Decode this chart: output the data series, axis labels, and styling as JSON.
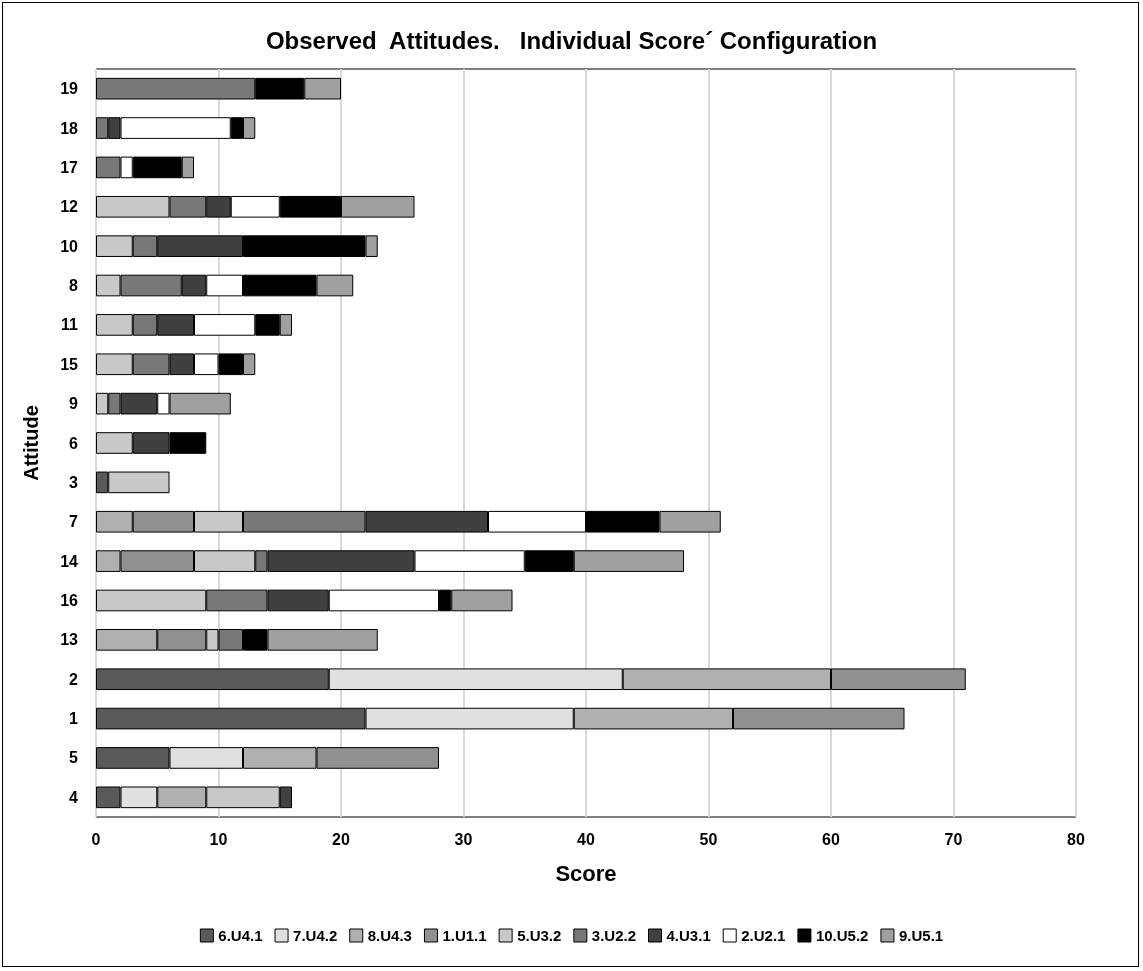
{
  "chart_data": {
    "type": "bar",
    "orientation": "horizontal",
    "stacked": true,
    "title": "Observed  Attitudes.   Individual Score´ Configuration",
    "xlabel": "Score",
    "ylabel": "Attitude",
    "categories": [
      "19",
      "18",
      "17",
      "12",
      "10",
      "8",
      "11",
      "15",
      "9",
      "6",
      "3",
      "7",
      "14",
      "16",
      "13",
      "2",
      "1",
      "5",
      "4"
    ],
    "xlim": [
      0,
      80
    ],
    "xticks": [
      0,
      10,
      20,
      30,
      40,
      50,
      60,
      70,
      80
    ],
    "grid": "x",
    "legend": "bottom",
    "series": [
      {
        "name": "6.U4.1",
        "color": "#595959",
        "values": [
          null,
          null,
          null,
          null,
          null,
          null,
          null,
          null,
          null,
          null,
          1,
          null,
          null,
          null,
          null,
          19,
          22,
          6,
          2
        ]
      },
      {
        "name": "7.U4.2",
        "color": "#e0e0e0",
        "values": [
          null,
          null,
          null,
          null,
          null,
          null,
          null,
          null,
          null,
          null,
          null,
          null,
          null,
          null,
          null,
          24,
          17,
          6,
          3
        ]
      },
      {
        "name": "8.U4.3",
        "color": "#b0b0b0",
        "values": [
          null,
          null,
          null,
          null,
          null,
          null,
          null,
          null,
          null,
          null,
          null,
          3,
          2,
          null,
          5,
          17,
          13,
          6,
          4
        ]
      },
      {
        "name": "1.U1.1",
        "color": "#909090",
        "values": [
          null,
          null,
          null,
          null,
          null,
          null,
          null,
          null,
          null,
          null,
          null,
          5,
          6,
          null,
          4,
          11,
          14,
          10,
          null
        ]
      },
      {
        "name": "5.U3.2",
        "color": "#c8c8c8",
        "values": [
          null,
          null,
          null,
          6,
          3,
          2,
          3,
          3,
          1,
          3,
          5,
          4,
          5,
          9,
          1,
          null,
          null,
          null,
          6
        ]
      },
      {
        "name": "3.U2.2",
        "color": "#787878",
        "values": [
          13,
          1,
          2,
          3,
          2,
          5,
          2,
          3,
          1,
          null,
          null,
          10,
          1,
          5,
          2,
          null,
          null,
          null,
          null
        ]
      },
      {
        "name": "4.U3.1",
        "color": "#404040",
        "values": [
          null,
          1,
          null,
          2,
          7,
          2,
          3,
          2,
          3,
          3,
          null,
          10,
          12,
          5,
          null,
          null,
          null,
          null,
          1
        ]
      },
      {
        "name": "2.U2.1",
        "color": "#ffffff",
        "values": [
          null,
          9,
          1,
          4,
          null,
          3,
          5,
          2,
          1,
          null,
          null,
          8,
          9,
          9,
          null,
          null,
          null,
          null,
          null
        ]
      },
      {
        "name": "10.U5.2",
        "color": "#000000",
        "values": [
          4,
          1,
          4,
          5,
          10,
          6,
          2,
          2,
          null,
          3,
          null,
          6,
          4,
          1,
          2,
          null,
          null,
          null,
          null
        ]
      },
      {
        "name": "9.U5.1",
        "color": "#a0a0a0",
        "values": [
          3,
          1,
          1,
          6,
          1,
          3,
          1,
          1,
          5,
          null,
          null,
          5,
          9,
          5,
          9,
          null,
          null,
          null,
          null
        ]
      }
    ]
  }
}
